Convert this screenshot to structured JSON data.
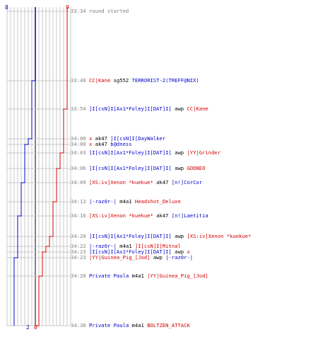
{
  "scores": {
    "blue_start": "8",
    "red_start": "9",
    "blue_end": "2",
    "red_end": "0"
  },
  "colors": {
    "blue": "#0000c8",
    "red": "#d20000",
    "grid": "#c8c8c8",
    "center": "#808080"
  },
  "events": [
    {
      "time": "33:34",
      "parts": [
        {
          "text": "round started",
          "color": "gray"
        }
      ]
    },
    {
      "time": "33:48",
      "parts": [
        {
          "text": "CC|Kane",
          "color": "red"
        },
        {
          "text": " sg552 ",
          "color": "black"
        },
        {
          "text": "TERRORIST-2(TREFF@NIX)",
          "color": "blue"
        }
      ]
    },
    {
      "time": "33:54",
      "parts": [
        {
          "text": "]I[csN]I[Ax1*Foley]I[DAT]I[",
          "color": "blue"
        },
        {
          "text": " awp ",
          "color": "black"
        },
        {
          "text": "CC|Kane",
          "color": "red"
        }
      ]
    },
    {
      "time": "34:00",
      "parts": [
        {
          "text": "x",
          "color": "red"
        },
        {
          "text": " ak47 ",
          "color": "black"
        },
        {
          "text": "]I[csN]I[DayWalker",
          "color": "blue"
        }
      ]
    },
    {
      "time": "34:00",
      "parts": [
        {
          "text": "x",
          "color": "red"
        },
        {
          "text": " ak47 ",
          "color": "black"
        },
        {
          "text": "b@dness",
          "color": "blue"
        }
      ]
    },
    {
      "time": "34:03",
      "parts": [
        {
          "text": "]I[csN]I[Ax1*Foley]I[DAT]I[",
          "color": "blue"
        },
        {
          "text": " awp ",
          "color": "black"
        },
        {
          "text": "|YY|Grinder",
          "color": "red"
        }
      ]
    },
    {
      "time": "34:06",
      "parts": [
        {
          "text": "]I[csN]I[Ax1*Foley]I[DAT]I[",
          "color": "blue"
        },
        {
          "text": " awp ",
          "color": "black"
        },
        {
          "text": "GODNEO",
          "color": "red"
        }
      ]
    },
    {
      "time": "34:09",
      "parts": [
        {
          "text": "[XS:iv]Xenon *kuekue*",
          "color": "red"
        },
        {
          "text": " ak47 ",
          "color": "black"
        },
        {
          "text": "[n!]CorCor",
          "color": "blue"
        }
      ]
    },
    {
      "time": "34:13",
      "parts": [
        {
          "text": "|-raz0r-|",
          "color": "blue"
        },
        {
          "text": " m4a1 ",
          "color": "black"
        },
        {
          "text": "Headshot_Deluxe",
          "color": "red"
        }
      ]
    },
    {
      "time": "34:16",
      "parts": [
        {
          "text": "[XS:iv]Xenon *kuekue*",
          "color": "red"
        },
        {
          "text": " ak47 ",
          "color": "black"
        },
        {
          "text": "[n!]Laetitia",
          "color": "blue"
        }
      ]
    },
    {
      "time": "34:20",
      "parts": [
        {
          "text": "]I[csN]I[Ax1*Foley]I[DAT]I[",
          "color": "blue"
        },
        {
          "text": " awp ",
          "color": "black"
        },
        {
          "text": "[XS:iv]Xenon *kuekue*",
          "color": "red"
        }
      ]
    },
    {
      "time": "34:22",
      "parts": [
        {
          "text": "|-raz0r-|",
          "color": "blue"
        },
        {
          "text": " m4a1 ",
          "color": "black"
        },
        {
          "text": "]I[csN]I[Mitnal",
          "color": "red"
        }
      ]
    },
    {
      "time": "34:23",
      "parts": [
        {
          "text": "]I[csN]I[Ax1*Foley]I[DAT]I[",
          "color": "blue"
        },
        {
          "text": " awp ",
          "color": "black"
        },
        {
          "text": "x",
          "color": "red"
        }
      ]
    },
    {
      "time": "34:23",
      "parts": [
        {
          "text": "|YY|Guinea_Pig_[Jod]",
          "color": "red"
        },
        {
          "text": " awp ",
          "color": "black"
        },
        {
          "text": "|-raz0r-|",
          "color": "blue"
        }
      ]
    },
    {
      "time": "34:28",
      "parts": [
        {
          "text": "Private Paula",
          "color": "blue"
        },
        {
          "text": " m4a1 ",
          "color": "black"
        },
        {
          "text": "|YY|Guinea_Pig_[Jod]",
          "color": "red"
        }
      ]
    },
    {
      "time": "34:38",
      "parts": [
        {
          "text": "Private Paula",
          "color": "blue"
        },
        {
          "text": " m4a1 ",
          "color": "black"
        },
        {
          "text": "BOLTZEN_ATTACK",
          "color": "red"
        }
      ]
    }
  ]
}
